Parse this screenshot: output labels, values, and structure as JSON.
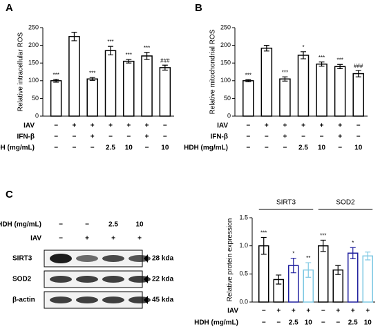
{
  "panels": [
    "A",
    "B",
    "C"
  ],
  "chart_data": [
    {
      "type": "bar",
      "ylabel": "Relative intracellular ROS",
      "ylim": [
        0,
        250
      ],
      "yticks": [
        0,
        50,
        100,
        150,
        200,
        250
      ],
      "color": "#000000",
      "values": [
        100,
        225,
        105,
        185,
        155,
        170,
        137
      ],
      "errors": [
        4,
        12,
        4,
        12,
        5,
        10,
        7
      ],
      "annotations": [
        "***",
        null,
        "***",
        "***",
        "***",
        "***",
        "###"
      ],
      "conditions": [
        {
          "name": "IAV",
          "values": [
            "−",
            "+",
            "+",
            "+",
            "+",
            "+",
            "−"
          ]
        },
        {
          "name": "IFN-β",
          "values": [
            "−",
            "−",
            "+",
            "−",
            "−",
            "+",
            "−"
          ]
        },
        {
          "name": "HDH (mg/mL)",
          "values": [
            "−",
            "−",
            "−",
            "2.5",
            "10",
            "−",
            "10"
          ]
        }
      ]
    },
    {
      "type": "bar",
      "ylabel": "Relative mitochondrial  ROS",
      "ylim": [
        0,
        250
      ],
      "yticks": [
        0,
        50,
        100,
        150,
        200,
        250
      ],
      "color": "#000000",
      "values": [
        100,
        192,
        105,
        172,
        147,
        140,
        120
      ],
      "errors": [
        3,
        8,
        6,
        10,
        6,
        6,
        9
      ],
      "annotations": [
        "***",
        null,
        "***",
        "*",
        "***",
        "***",
        "###"
      ],
      "conditions": [
        {
          "name": "IAV",
          "values": [
            "−",
            "+",
            "+",
            "+",
            "+",
            "+",
            "−"
          ]
        },
        {
          "name": "IFN-β",
          "values": [
            "−",
            "−",
            "+",
            "−",
            "−",
            "+",
            "−"
          ]
        },
        {
          "name": "HDH (mg/mL)",
          "values": [
            "−",
            "−",
            "−",
            "2.5",
            "10",
            "−",
            "10"
          ]
        }
      ]
    },
    {
      "type": "bar",
      "ylabel": "Relative protein expression",
      "ylim": [
        0,
        1.5
      ],
      "yticks": [
        {
          "value": 0,
          "label": "0.0"
        },
        0.5,
        {
          "value": 1,
          "label": "1.0"
        },
        1.5
      ],
      "groups": [
        "SIRT3",
        "SOD2"
      ],
      "colors": [
        "#000000",
        "#000000",
        "#1f1f9e",
        "#7ec8e3",
        "#000000",
        "#000000",
        "#1f1f9e",
        "#7ec8e3"
      ],
      "values": [
        1.0,
        0.4,
        0.65,
        0.57,
        1.0,
        0.57,
        0.87,
        0.82
      ],
      "errors": [
        0.15,
        0.08,
        0.13,
        0.13,
        0.1,
        0.08,
        0.1,
        0.07
      ],
      "annotations": [
        "***",
        null,
        "*",
        "**",
        "***",
        null,
        "*",
        null
      ],
      "conditions": [
        {
          "name": "IAV",
          "values": [
            "−",
            "+",
            "+",
            "+",
            "−",
            "+",
            "+",
            "+"
          ]
        },
        {
          "name": "HDH (mg/mL)",
          "values": [
            "−",
            "−",
            "2.5",
            "10",
            "−",
            "−",
            "2.5",
            "10"
          ]
        }
      ]
    }
  ],
  "blot": {
    "conditions": [
      {
        "name": "HDH (mg/mL)",
        "values": [
          "−",
          "−",
          "2.5",
          "10"
        ]
      },
      {
        "name": "IAV",
        "values": [
          "−",
          "+",
          "+",
          "+"
        ]
      }
    ],
    "bands": [
      {
        "name": "SIRT3",
        "size": "28 kda"
      },
      {
        "name": "SOD2",
        "size": "22 kda"
      },
      {
        "name": "β-actin",
        "size": "45 kda"
      }
    ]
  }
}
